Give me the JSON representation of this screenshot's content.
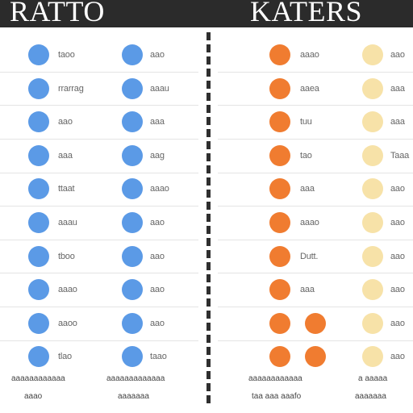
{
  "header": {
    "title_left": "RATTO",
    "title_right": "KATERS"
  },
  "colors": {
    "header_bg": "#2b2b2b",
    "blue": "#5b9ae6",
    "orange": "#f07c30",
    "cream": "#f7e2a8"
  },
  "left_table": {
    "col1": [
      "taoo",
      "rrarrag",
      "aao",
      "aaa",
      "ttaat",
      "aaau",
      "tboo",
      "aaao",
      "aaoo",
      "tlao"
    ],
    "col2": [
      "aao",
      "aaau",
      "aaa",
      "aag",
      "aaao",
      "aao",
      "aao",
      "aao",
      "aao",
      "taao"
    ]
  },
  "right_table": {
    "col1": [
      "aaao",
      "aaea",
      "tuu",
      "tao",
      "aaa",
      "aaao",
      "Dutt.",
      "aaa",
      "",
      ""
    ],
    "col2": [
      "aao",
      "aaa",
      "aaa",
      "Taaa",
      "aao",
      "aao",
      "aao",
      "aao",
      "aao",
      "aao"
    ]
  },
  "footer": {
    "left_a_1": "aaaaaaaaaaaa",
    "left_a_2": "aaao",
    "left_b_1": "aaaaaaaaaaaaa",
    "left_b_2": "aaaaaaa",
    "right_a_1": "aaaaaaaaaaaa",
    "right_a_2": "taa aaa aaafo",
    "right_b_1": "a aaaaa",
    "right_b_2": "aaaaaaa"
  }
}
